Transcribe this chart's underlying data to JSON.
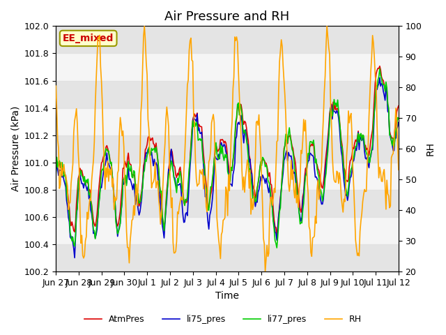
{
  "title": "Air Pressure and RH",
  "xlabel": "Time",
  "ylabel_left": "Air Pressure (kPa)",
  "ylabel_right": "RH",
  "ylim_left": [
    100.2,
    102.0
  ],
  "ylim_right": [
    20,
    100
  ],
  "label_box_text": "EE_mixed",
  "label_box_color": "#ffffcc",
  "label_box_edge": "#999900",
  "label_text_color": "#cc0000",
  "xtick_labels": [
    "Jun 27",
    "Jun 28",
    "Jun 29",
    "Jun 30",
    "Jul 1",
    "Jul 2",
    "Jul 3",
    "Jul 4",
    "Jul 5",
    "Jul 6",
    "Jul 7",
    "Jul 8",
    "Jul 9",
    "Jul 10",
    "Jul 11",
    "Jul 12"
  ],
  "line_colors": {
    "AtmPres": "#dd0000",
    "li75_pres": "#0000cc",
    "li77_pres": "#00cc00",
    "RH": "#ffa500"
  },
  "bg_band_color": "#e0e0e0",
  "bg_band_alpha": 0.8,
  "title_fontsize": 13,
  "axis_fontsize": 10,
  "tick_fontsize": 9,
  "legend_fontsize": 9,
  "line_width": 1.2,
  "n_points": 384,
  "n_days": 15
}
